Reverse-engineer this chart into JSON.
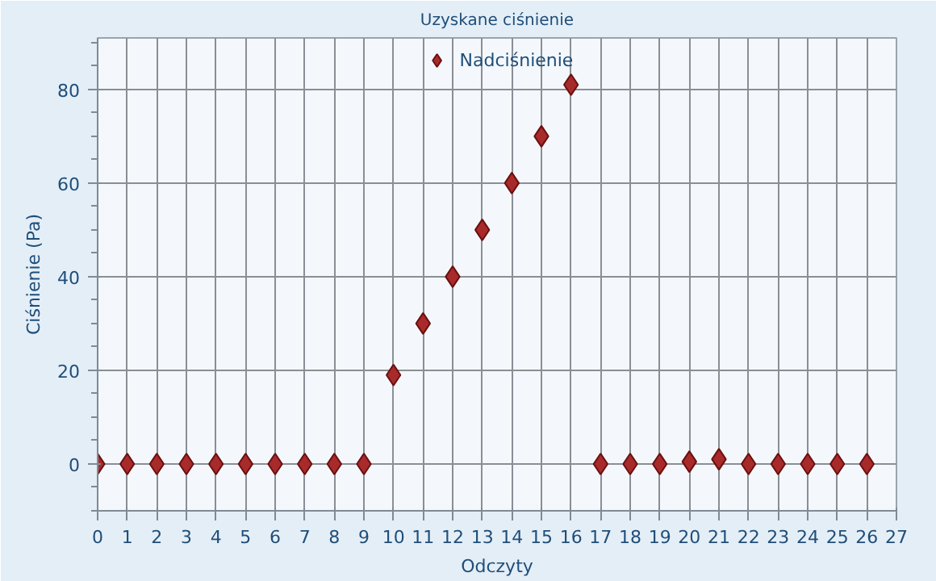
{
  "chart_data": {
    "type": "scatter",
    "title": "Uzyskane ciśnienie",
    "xlabel": "Odczyty",
    "ylabel": "Ciśnienie (Pa)",
    "x": [
      0,
      1,
      2,
      3,
      4,
      5,
      6,
      7,
      8,
      9,
      10,
      11,
      12,
      13,
      14,
      15,
      16,
      17,
      18,
      19,
      20,
      21,
      22,
      23,
      24,
      25,
      26
    ],
    "series": [
      {
        "name": "Nadciśnienie",
        "color": "#a82a2a",
        "values": [
          0,
          0,
          0,
          0,
          0,
          0,
          0,
          0,
          0,
          0,
          19,
          30,
          40,
          50,
          60,
          70,
          81,
          0,
          0,
          0,
          0.5,
          1,
          0,
          0,
          0,
          0,
          0
        ]
      }
    ],
    "xlim": [
      0,
      27
    ],
    "ylim": [
      -10,
      91
    ],
    "xticks": [
      0,
      1,
      2,
      3,
      4,
      5,
      6,
      7,
      8,
      9,
      10,
      11,
      12,
      13,
      14,
      15,
      16,
      17,
      18,
      19,
      20,
      21,
      22,
      23,
      24,
      25,
      26,
      27
    ],
    "yticks": [
      0,
      20,
      40,
      60,
      80
    ],
    "grid": true,
    "legend": "top",
    "marker": "diamond"
  }
}
